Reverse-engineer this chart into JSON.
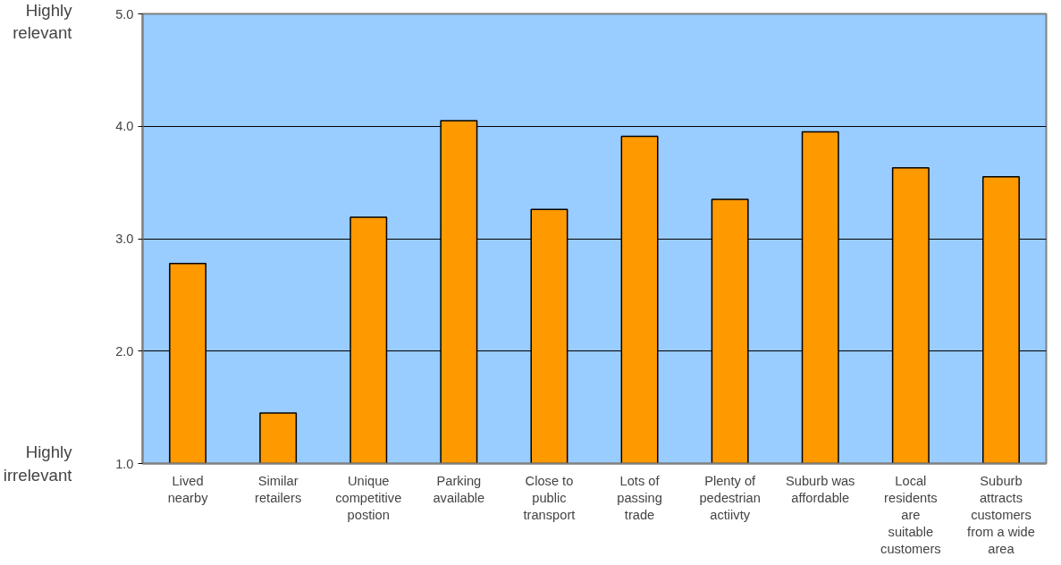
{
  "chart_data": {
    "type": "bar",
    "categories": [
      "Lived nearby",
      "Similar retailers",
      "Unique competitive postion",
      "Parking available",
      "Close to public transport",
      "Lots of passing trade",
      "Plenty of pedestrian actiivty",
      "Suburb was affordable",
      "Local residents are suitable customers",
      "Suburb attracts customers from a wide area"
    ],
    "values": [
      2.78,
      1.45,
      3.19,
      4.05,
      3.26,
      3.91,
      3.35,
      3.95,
      3.63,
      3.55
    ],
    "color": "#ff9900",
    "ylim": [
      1.0,
      5.0
    ],
    "yticks": [
      {
        "value": 1,
        "label": "1.0"
      },
      {
        "value": 2,
        "label": "2.0"
      },
      {
        "value": 3,
        "label": "3.0"
      },
      {
        "value": 4,
        "label": "4.0"
      },
      {
        "value": 5,
        "label": "5.0"
      }
    ],
    "grid": "y",
    "annotations": [
      "Highly relevant",
      "Highly irrelevant"
    ]
  }
}
